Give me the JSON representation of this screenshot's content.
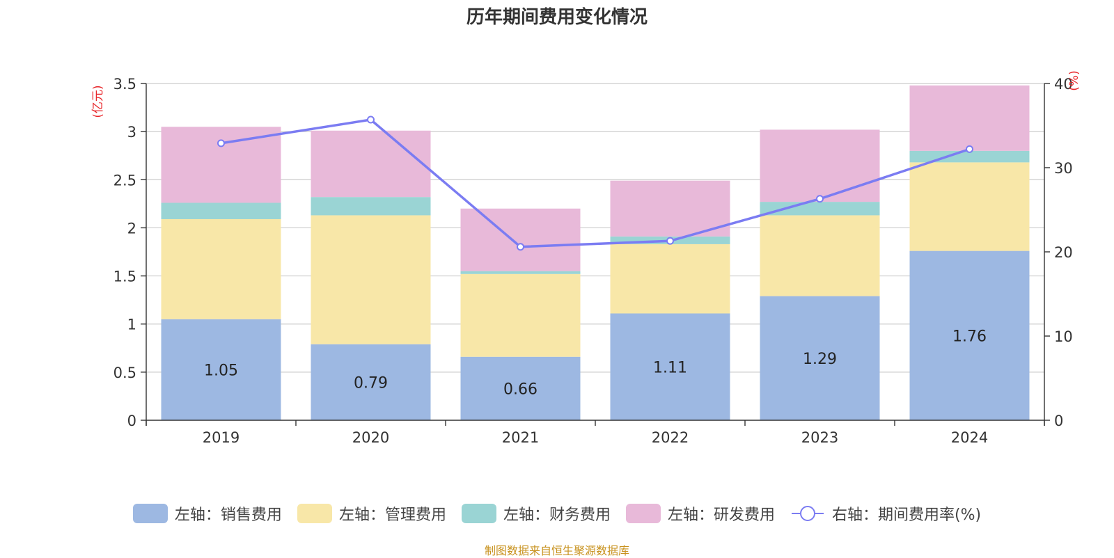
{
  "title": "历年期间费用变化情况",
  "footer": "制图数据来自恒生聚源数据库",
  "colors": {
    "sales": "#9db8e2",
    "admin": "#f8e7a8",
    "finance": "#9ad4d4",
    "rd": "#e8b9d9",
    "line": "#7b7cf2",
    "unit": "#e8262a",
    "grid": "#cccccc",
    "axis": "#333333"
  },
  "chart_data": {
    "type": "bar",
    "stacked": true,
    "title": "历年期间费用变化情况",
    "categories": [
      "2019",
      "2020",
      "2021",
      "2022",
      "2023",
      "2024"
    ],
    "left_axis": {
      "unit": "(亿元)",
      "min": 0,
      "max": 3.5,
      "ticks": [
        "0",
        "0.5",
        "1",
        "1.5",
        "2",
        "2.5",
        "3",
        "3.5"
      ]
    },
    "right_axis": {
      "unit": "(%)",
      "min": 0,
      "max": 40,
      "ticks": [
        "0",
        "10",
        "20",
        "30",
        "40"
      ]
    },
    "series": [
      {
        "name": "左轴：销售费用",
        "key": "sales",
        "axis": "left",
        "type": "bar",
        "values": [
          1.05,
          0.79,
          0.66,
          1.11,
          1.29,
          1.76
        ],
        "labels": [
          "1.05",
          "0.79",
          "0.66",
          "1.11",
          "1.29",
          "1.76"
        ]
      },
      {
        "name": "左轴：管理费用",
        "key": "admin",
        "axis": "left",
        "type": "bar",
        "values": [
          1.04,
          1.34,
          0.86,
          0.72,
          0.84,
          0.92
        ]
      },
      {
        "name": "左轴：财务费用",
        "key": "finance",
        "axis": "left",
        "type": "bar",
        "values": [
          0.17,
          0.19,
          0.03,
          0.08,
          0.14,
          0.12
        ]
      },
      {
        "name": "左轴：研发费用",
        "key": "rd",
        "axis": "left",
        "type": "bar",
        "values": [
          0.79,
          0.69,
          0.65,
          0.58,
          0.75,
          0.68
        ]
      },
      {
        "name": "右轴：期间费用率(%)",
        "key": "line",
        "axis": "right",
        "type": "line",
        "values": [
          32.9,
          35.7,
          20.6,
          21.3,
          26.3,
          32.2
        ]
      }
    ]
  }
}
